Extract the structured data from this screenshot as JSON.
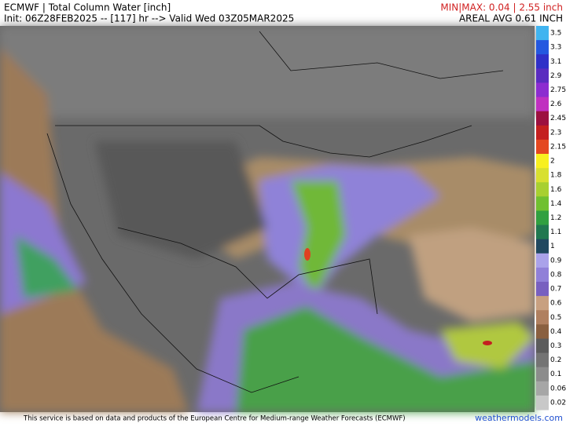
{
  "header": {
    "title": "ECMWF | Total Column Water [inch]",
    "init": "Init: 06Z28FEB2025 -- [117] hr --> Valid Wed 03Z05MAR2025",
    "minmax": "MIN|MAX: 0.04 | 2.55 inch",
    "areal": "AREAL AVG 0.61 INCH"
  },
  "legend": {
    "items": [
      {
        "label": "3.5",
        "color": "#40b4f0"
      },
      {
        "label": "3.3",
        "color": "#2458e0"
      },
      {
        "label": "3.1",
        "color": "#3030c8"
      },
      {
        "label": "2.9",
        "color": "#5a2cc0"
      },
      {
        "label": "2.75",
        "color": "#8c2cd0"
      },
      {
        "label": "2.6",
        "color": "#c030c0"
      },
      {
        "label": "2.45",
        "color": "#9c1040"
      },
      {
        "label": "2.3",
        "color": "#c42020"
      },
      {
        "label": "2.15",
        "color": "#e44820"
      },
      {
        "label": "2",
        "color": "#f8f020"
      },
      {
        "label": "1.8",
        "color": "#d8e030"
      },
      {
        "label": "1.6",
        "color": "#a8d030"
      },
      {
        "label": "1.4",
        "color": "#70c030"
      },
      {
        "label": "1.2",
        "color": "#30a040"
      },
      {
        "label": "1.1",
        "color": "#207850"
      },
      {
        "label": "1",
        "color": "#204860"
      },
      {
        "label": "0.9",
        "color": "#aaa2ea"
      },
      {
        "label": "0.8",
        "color": "#9080d8"
      },
      {
        "label": "0.7",
        "color": "#7860c0"
      },
      {
        "label": "0.6",
        "color": "#c8a080"
      },
      {
        "label": "0.5",
        "color": "#b08060"
      },
      {
        "label": "0.4",
        "color": "#8a6040"
      },
      {
        "label": "0.3",
        "color": "#5c5c5c"
      },
      {
        "label": "0.2",
        "color": "#747474"
      },
      {
        "label": "0.1",
        "color": "#8c8c8c"
      },
      {
        "label": "0.06",
        "color": "#a6a6a6"
      },
      {
        "label": "0.02",
        "color": "#c8c8c8"
      }
    ]
  },
  "footer": {
    "credit": "This service is based on data and products of the European Centre for Medium-range Weather Forecasts (ECMWF)",
    "site": "weathermodels.com"
  }
}
